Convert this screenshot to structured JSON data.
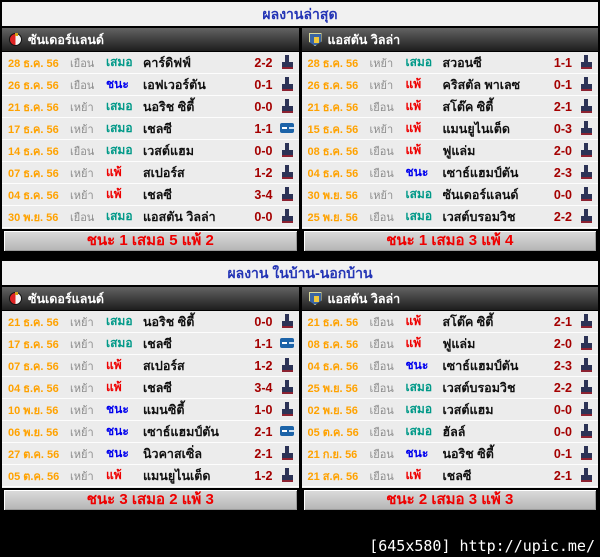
{
  "watermark": "[645x580] http://upic.me/",
  "colors": {
    "draw": "#009988",
    "win": "#0000ee",
    "loss": "#ee0000",
    "score": "#a40000",
    "date": "#ffa200",
    "title": "#2334b5",
    "summary_text": "#ee0000"
  },
  "icons": {
    "stats": "stats-icon",
    "video": "video-icon",
    "sunderland_crest": "sunderland-crest-icon",
    "villa_crest": "aston-villa-crest-icon"
  },
  "sections": [
    {
      "title": "ผลงานล่าสุด",
      "tables": [
        {
          "team": "ซันเดอร์แลนด์",
          "summary": "ชนะ 1 เสมอ 5 แพ้ 2",
          "rows": [
            {
              "date": "28 ธ.ค. 56",
              "venue": "เยือน",
              "result": "เสมอ",
              "result_style": "draw",
              "opponent": "คาร์ดิฟฟ์",
              "score": "2-2",
              "icon": "stats"
            },
            {
              "date": "26 ธ.ค. 56",
              "venue": "เยือน",
              "result": "ชนะ",
              "result_style": "win",
              "opponent": "เอฟเวอร์ตัน",
              "score": "0-1",
              "icon": "stats"
            },
            {
              "date": "21 ธ.ค. 56",
              "venue": "เหย้า",
              "result": "เสมอ",
              "result_style": "draw",
              "opponent": "นอริช ซิตี้",
              "score": "0-0",
              "icon": "stats"
            },
            {
              "date": "17 ธ.ค. 56",
              "venue": "เหย้า",
              "result": "เสมอ",
              "result_style": "draw",
              "opponent": "เชลซี",
              "score": "1-1",
              "icon": "video"
            },
            {
              "date": "14 ธ.ค. 56",
              "venue": "เยือน",
              "result": "เสมอ",
              "result_style": "draw",
              "opponent": "เวสต์แฮม",
              "score": "0-0",
              "icon": "stats"
            },
            {
              "date": "07 ธ.ค. 56",
              "venue": "เหย้า",
              "result": "แพ้",
              "result_style": "loss",
              "opponent": "สเปอร์ส",
              "score": "1-2",
              "icon": "stats"
            },
            {
              "date": "04 ธ.ค. 56",
              "venue": "เหย้า",
              "result": "แพ้",
              "result_style": "loss",
              "opponent": "เชลซี",
              "score": "3-4",
              "icon": "stats"
            },
            {
              "date": "30 พ.ย. 56",
              "venue": "เยือน",
              "result": "เสมอ",
              "result_style": "draw",
              "opponent": "แอสตัน วิลล่า",
              "score": "0-0",
              "icon": "stats"
            }
          ]
        },
        {
          "team": "แอสตัน วิลล่า",
          "summary": "ชนะ 1 เสมอ 3 แพ้ 4",
          "rows": [
            {
              "date": "28 ธ.ค. 56",
              "venue": "เหย้า",
              "result": "เสมอ",
              "result_style": "draw",
              "opponent": "สวอนซี",
              "score": "1-1",
              "icon": "stats"
            },
            {
              "date": "26 ธ.ค. 56",
              "venue": "เหย้า",
              "result": "แพ้",
              "result_style": "loss",
              "opponent": "คริสตัล พาเลซ",
              "score": "0-1",
              "icon": "stats"
            },
            {
              "date": "21 ธ.ค. 56",
              "venue": "เยือน",
              "result": "แพ้",
              "result_style": "loss",
              "opponent": "สโต๊ค ซิตี้",
              "score": "2-1",
              "icon": "stats"
            },
            {
              "date": "15 ธ.ค. 56",
              "venue": "เหย้า",
              "result": "แพ้",
              "result_style": "loss",
              "opponent": "แมนยูไนเต็ด",
              "score": "0-3",
              "icon": "stats"
            },
            {
              "date": "08 ธ.ค. 56",
              "venue": "เยือน",
              "result": "แพ้",
              "result_style": "loss",
              "opponent": "ฟูแล่ม",
              "score": "2-0",
              "icon": "stats"
            },
            {
              "date": "04 ธ.ค. 56",
              "venue": "เยือน",
              "result": "ชนะ",
              "result_style": "win",
              "opponent": "เซาธ์แฮมป์ตัน",
              "score": "2-3",
              "icon": "stats"
            },
            {
              "date": "30 พ.ย. 56",
              "venue": "เหย้า",
              "result": "เสมอ",
              "result_style": "draw",
              "opponent": "ซันเดอร์แลนด์",
              "score": "0-0",
              "icon": "stats"
            },
            {
              "date": "25 พ.ย. 56",
              "venue": "เยือน",
              "result": "เสมอ",
              "result_style": "draw",
              "opponent": "เวสต์บรอมวิช",
              "score": "2-2",
              "icon": "stats"
            }
          ]
        }
      ]
    },
    {
      "title": "ผลงาน ในบ้าน-นอกบ้าน",
      "tables": [
        {
          "team": "ซันเดอร์แลนด์",
          "summary": "ชนะ 3 เสมอ 2 แพ้ 3",
          "rows": [
            {
              "date": "21 ธ.ค. 56",
              "venue": "เหย้า",
              "result": "เสมอ",
              "result_style": "draw",
              "opponent": "นอริช ซิตี้",
              "score": "0-0",
              "icon": "stats"
            },
            {
              "date": "17 ธ.ค. 56",
              "venue": "เหย้า",
              "result": "เสมอ",
              "result_style": "draw",
              "opponent": "เชลซี",
              "score": "1-1",
              "icon": "video"
            },
            {
              "date": "07 ธ.ค. 56",
              "venue": "เหย้า",
              "result": "แพ้",
              "result_style": "loss",
              "opponent": "สเปอร์ส",
              "score": "1-2",
              "icon": "stats"
            },
            {
              "date": "04 ธ.ค. 56",
              "venue": "เหย้า",
              "result": "แพ้",
              "result_style": "loss",
              "opponent": "เชลซี",
              "score": "3-4",
              "icon": "stats"
            },
            {
              "date": "10 พ.ย. 56",
              "venue": "เหย้า",
              "result": "ชนะ",
              "result_style": "win",
              "opponent": "แมนซิตี้",
              "score": "1-0",
              "icon": "stats"
            },
            {
              "date": "06 พ.ย. 56",
              "venue": "เหย้า",
              "result": "ชนะ",
              "result_style": "win",
              "opponent": "เซาธ์แฮมป์ตัน",
              "score": "2-1",
              "icon": "video"
            },
            {
              "date": "27 ต.ค. 56",
              "venue": "เหย้า",
              "result": "ชนะ",
              "result_style": "win",
              "opponent": "นิวคาสเซิ่ล",
              "score": "2-1",
              "icon": "stats"
            },
            {
              "date": "05 ต.ค. 56",
              "venue": "เหย้า",
              "result": "แพ้",
              "result_style": "loss",
              "opponent": "แมนยูไนเต็ด",
              "score": "1-2",
              "icon": "stats"
            }
          ]
        },
        {
          "team": "แอสตัน วิลล่า",
          "summary": "ชนะ 2 เสมอ 3 แพ้ 3",
          "rows": [
            {
              "date": "21 ธ.ค. 56",
              "venue": "เยือน",
              "result": "แพ้",
              "result_style": "loss",
              "opponent": "สโต๊ค ซิตี้",
              "score": "2-1",
              "icon": "stats"
            },
            {
              "date": "08 ธ.ค. 56",
              "venue": "เยือน",
              "result": "แพ้",
              "result_style": "loss",
              "opponent": "ฟูแล่ม",
              "score": "2-0",
              "icon": "stats"
            },
            {
              "date": "04 ธ.ค. 56",
              "venue": "เยือน",
              "result": "ชนะ",
              "result_style": "win",
              "opponent": "เซาธ์แฮมป์ตัน",
              "score": "2-3",
              "icon": "stats"
            },
            {
              "date": "25 พ.ย. 56",
              "venue": "เยือน",
              "result": "เสมอ",
              "result_style": "draw",
              "opponent": "เวสต์บรอมวิช",
              "score": "2-2",
              "icon": "stats"
            },
            {
              "date": "02 พ.ย. 56",
              "venue": "เยือน",
              "result": "เสมอ",
              "result_style": "draw",
              "opponent": "เวสต์แฮม",
              "score": "0-0",
              "icon": "stats"
            },
            {
              "date": "05 ต.ค. 56",
              "venue": "เยือน",
              "result": "เสมอ",
              "result_style": "draw",
              "opponent": "ฮัลล์",
              "score": "0-0",
              "icon": "stats"
            },
            {
              "date": "21 ก.ย. 56",
              "venue": "เยือน",
              "result": "ชนะ",
              "result_style": "win",
              "opponent": "นอริช ซิตี้",
              "score": "0-1",
              "icon": "stats"
            },
            {
              "date": "21 ส.ค. 56",
              "venue": "เยือน",
              "result": "แพ้",
              "result_style": "loss",
              "opponent": "เชลซี",
              "score": "2-1",
              "icon": "stats"
            }
          ]
        }
      ]
    }
  ]
}
